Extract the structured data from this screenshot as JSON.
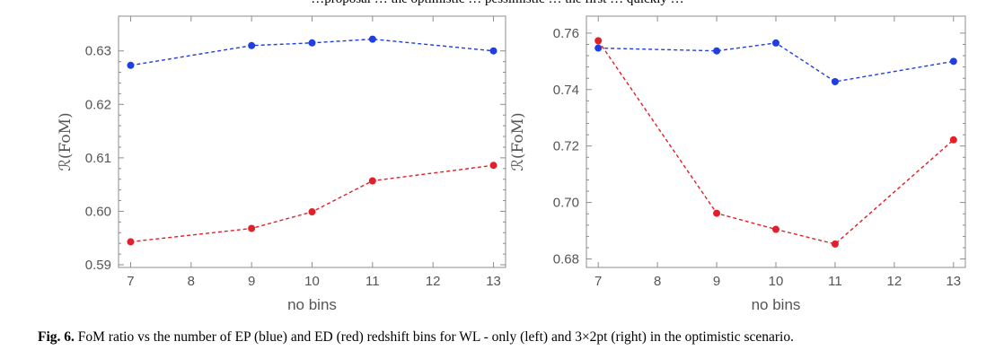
{
  "top_text": "…proposal … the optimistic … pessimistic … the first … quickly …",
  "caption": {
    "label": "Fig. 6.",
    "text": "FoM ratio vs the number of EP (blue) and ED (red) redshift bins for WL - only (left) and 3×2pt (right) in the optimistic scenario."
  },
  "colors": {
    "blue": "#1f3fe0",
    "red": "#e0202a",
    "frame": "#8c8c8c",
    "tick_text": "#555555"
  },
  "chart_data": [
    {
      "type": "line",
      "xlabel": "no bins",
      "ylabel": "ℛ(FoM)",
      "xlim": [
        6.8,
        13.2
      ],
      "ylim": [
        0.5895,
        0.6365
      ],
      "xticks": [
        7,
        8,
        9,
        10,
        11,
        12,
        13
      ],
      "yticks": [
        0.59,
        0.6,
        0.61,
        0.62,
        0.63
      ],
      "ytick_labels": [
        "0.59",
        "0.60",
        "0.61",
        "0.62",
        "0.63"
      ],
      "series": [
        {
          "color": "blue",
          "x": [
            7,
            9,
            10,
            11,
            13
          ],
          "y": [
            0.6273,
            0.631,
            0.6315,
            0.6322,
            0.63
          ]
        },
        {
          "color": "red",
          "x": [
            7,
            9,
            10,
            11,
            13
          ],
          "y": [
            0.5943,
            0.5968,
            0.5999,
            0.6057,
            0.6086
          ]
        }
      ]
    },
    {
      "type": "line",
      "xlabel": "no bins",
      "ylabel": "ℛ(FoM)",
      "xlim": [
        6.8,
        13.2
      ],
      "ylim": [
        0.677,
        0.766
      ],
      "xticks": [
        7,
        8,
        9,
        10,
        11,
        12,
        13
      ],
      "yticks": [
        0.68,
        0.7,
        0.72,
        0.74,
        0.76
      ],
      "ytick_labels": [
        "0.68",
        "0.70",
        "0.72",
        "0.74",
        "0.76"
      ],
      "series": [
        {
          "color": "blue",
          "x": [
            7,
            9,
            10,
            11,
            13
          ],
          "y": [
            0.7547,
            0.7537,
            0.7565,
            0.7428,
            0.75
          ]
        },
        {
          "color": "red",
          "x": [
            7,
            9,
            10,
            11,
            13
          ],
          "y": [
            0.7573,
            0.6962,
            0.6905,
            0.6853,
            0.7222
          ]
        }
      ]
    }
  ]
}
